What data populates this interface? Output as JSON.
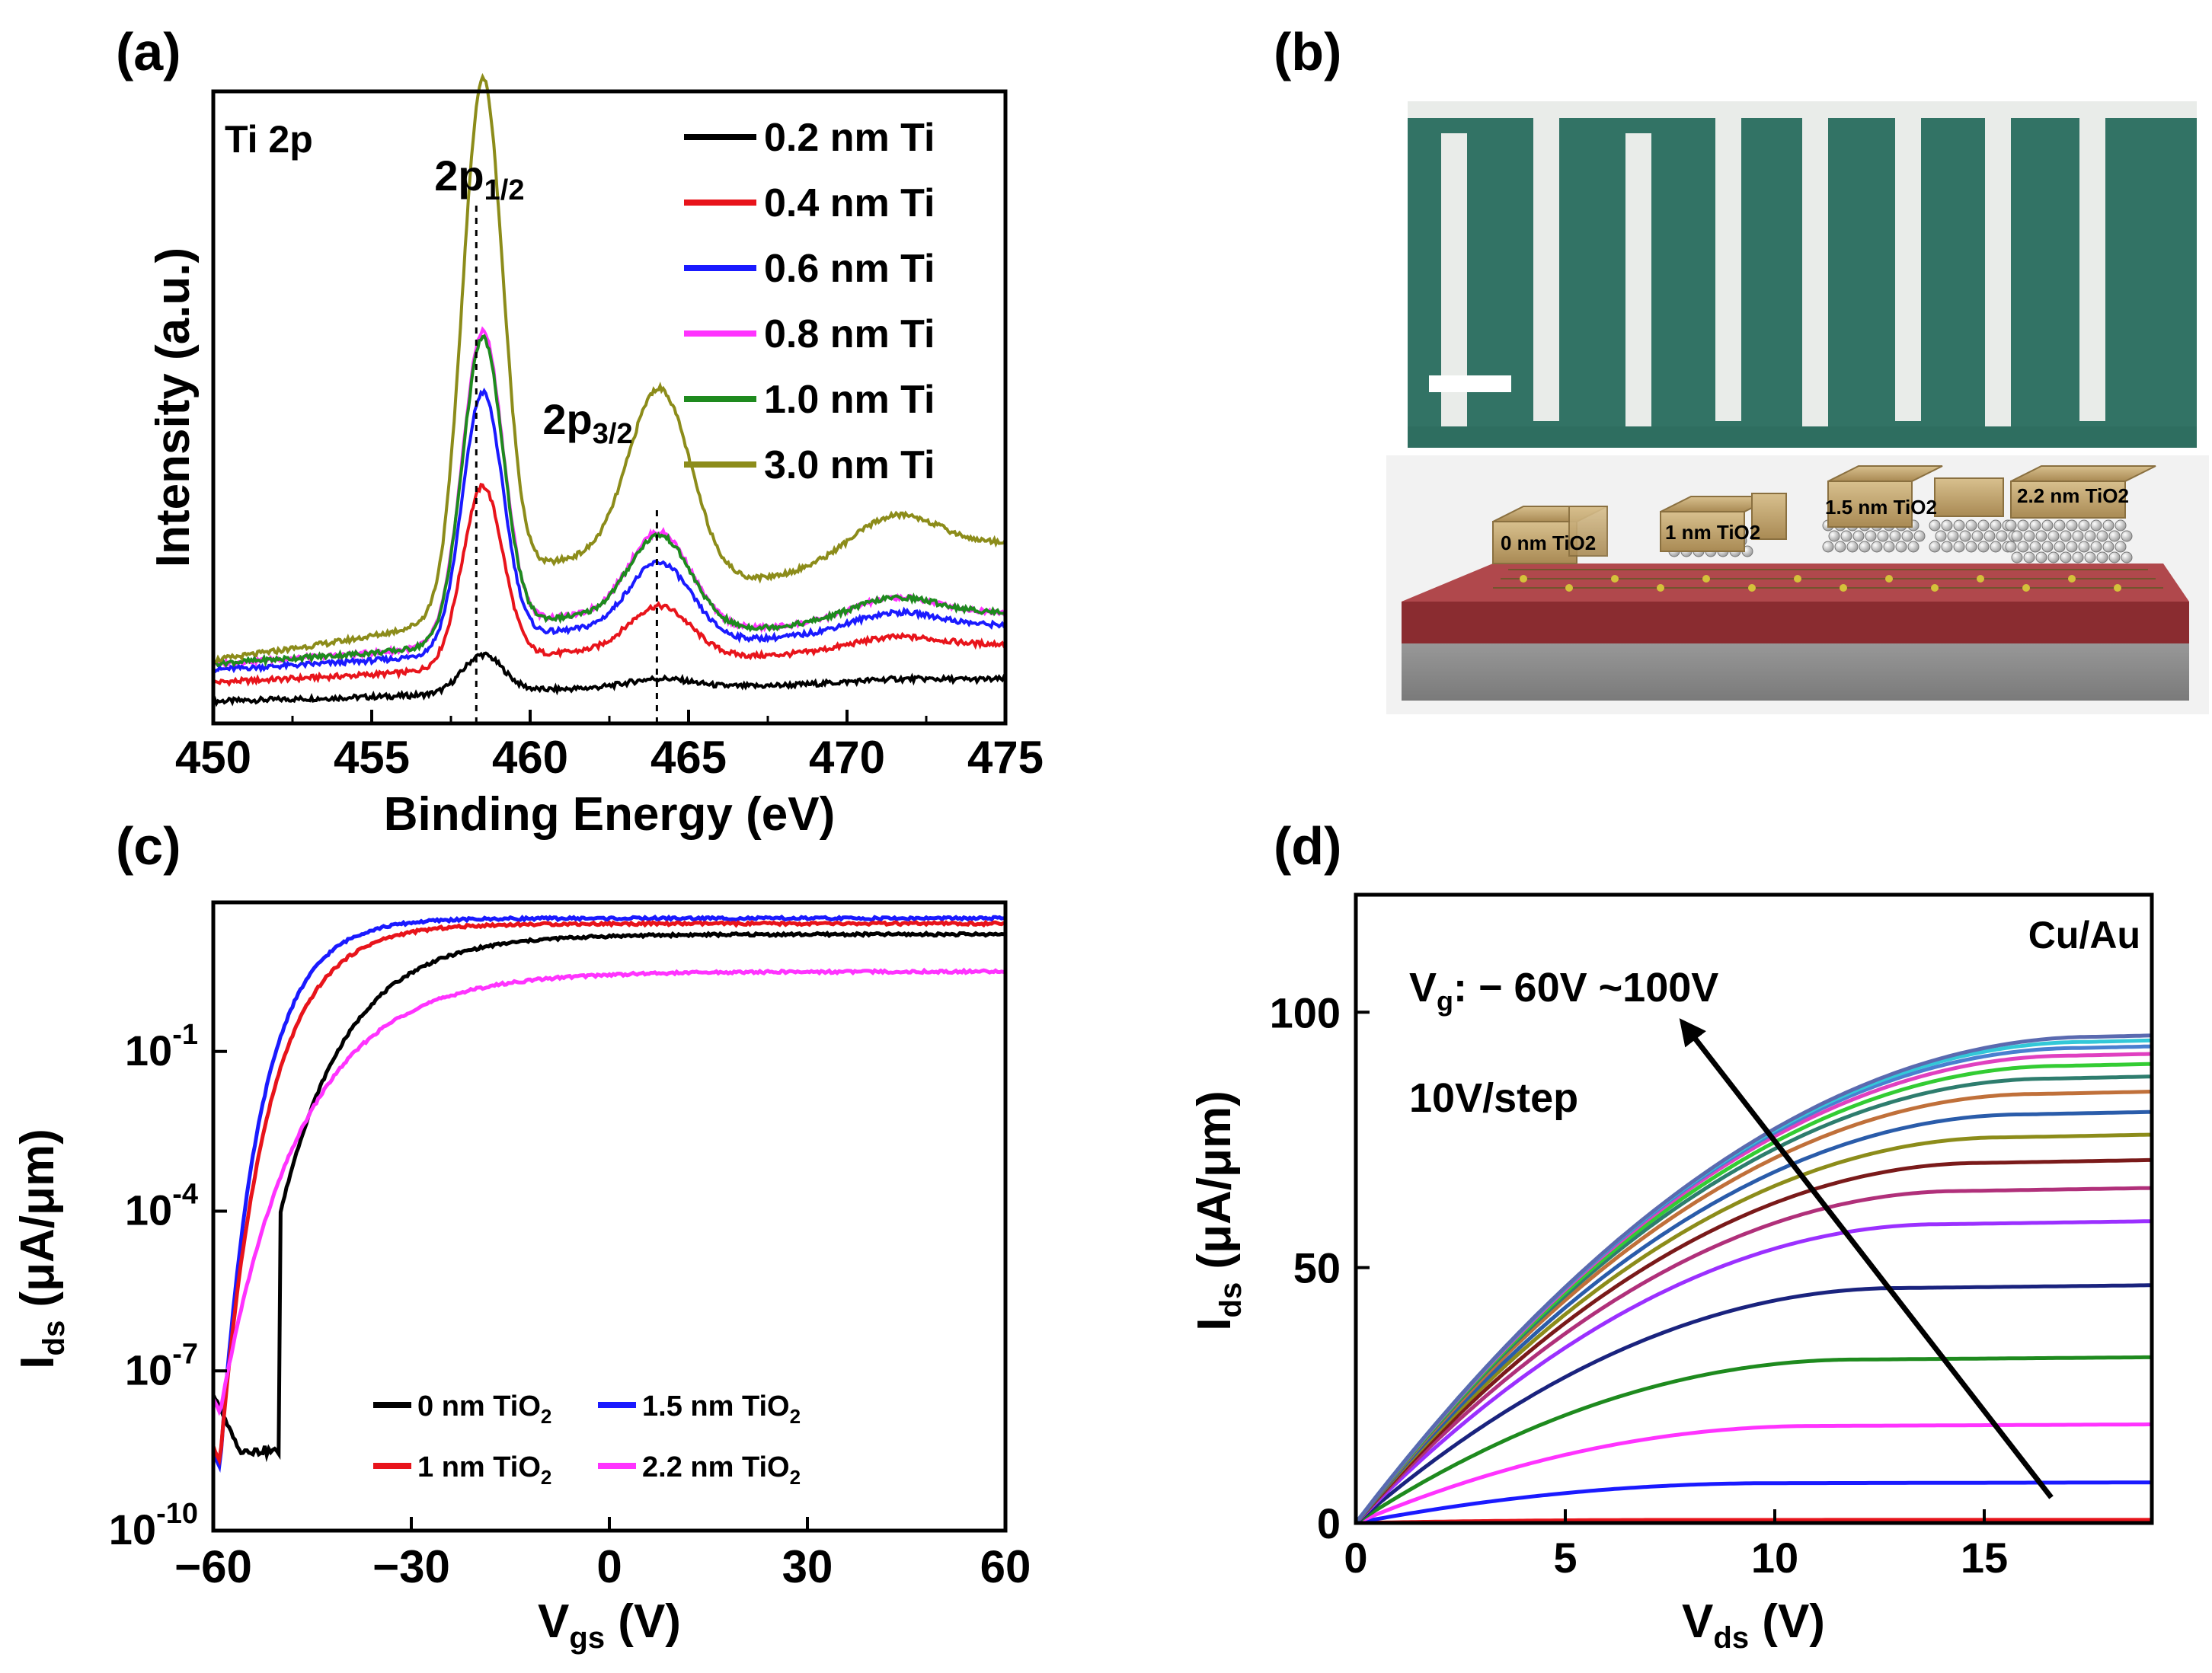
{
  "colors": {
    "black": "#000000",
    "red": "#e8141b",
    "blue": "#1a1aff",
    "magenta": "#ff33ff",
    "green": "#1e8a1e",
    "olive": "#8c8c1a",
    "sem_bg": "#2e6e60",
    "sem_bar": "#e9ece9",
    "substrate_red": "#8a2c30",
    "substrate_gray": "#8a8a8a",
    "contact_gold": "#c8ab74"
  },
  "panels": {
    "a": {
      "label": "(a)"
    },
    "b": {
      "label": "(b)"
    },
    "c": {
      "label": "(c)"
    },
    "d": {
      "label": "(d)"
    }
  },
  "schematic": {
    "labels": [
      "0 nm TiO2",
      "1 nm TiO2",
      "1.5 nm TiO2",
      "2.2 nm TiO2"
    ]
  },
  "chart_data": [
    {
      "id": "a",
      "type": "line",
      "title": "",
      "corner_label": "Ti 2p",
      "xlabel": "Binding Energy (eV)",
      "ylabel": "Intensity (a.u.)",
      "xlim": [
        450,
        475
      ],
      "ylim": [
        0,
        1
      ],
      "xticks": [
        450,
        455,
        460,
        465,
        470,
        475
      ],
      "peaks": [
        {
          "label_main": "2p",
          "label_sub": "1/2",
          "position_ev": 458.3
        },
        {
          "label_main": "2p",
          "label_sub": "3/2",
          "position_ev": 464.0
        }
      ],
      "legend_position": "top-right",
      "series": [
        {
          "name": "0.2 nm Ti",
          "color": "#000000",
          "baseline": 0.035,
          "baseline_end": 0.07,
          "p1": 0.06,
          "p2": 0.015,
          "p3": 0.005
        },
        {
          "name": "0.4 nm Ti",
          "color": "#e8141b",
          "baseline": 0.065,
          "baseline_end": 0.125,
          "p1": 0.28,
          "p2": 0.08,
          "p3": 0.02
        },
        {
          "name": "0.6 nm Ti",
          "color": "#1a1aff",
          "baseline": 0.085,
          "baseline_end": 0.155,
          "p1": 0.4,
          "p2": 0.12,
          "p3": 0.03
        },
        {
          "name": "0.8 nm Ti",
          "color": "#ff33ff",
          "baseline": 0.095,
          "baseline_end": 0.175,
          "p1": 0.48,
          "p2": 0.15,
          "p3": 0.035
        },
        {
          "name": "1.0 nm Ti",
          "color": "#1e8a1e",
          "baseline": 0.095,
          "baseline_end": 0.175,
          "p1": 0.47,
          "p2": 0.145,
          "p3": 0.035
        },
        {
          "name": "3.0 nm Ti",
          "color": "#8c8c1a",
          "baseline": 0.1,
          "baseline_end": 0.285,
          "p1": 0.82,
          "p2": 0.3,
          "p3": 0.07
        }
      ]
    },
    {
      "id": "c",
      "type": "line",
      "title": "",
      "xlabel_main": "V",
      "xlabel_sub": "gs",
      "xlabel_tail": " (V)",
      "ylabel_main": "I",
      "ylabel_sub": "ds",
      "ylabel_tail": " (μA/μm)",
      "xlim": [
        -60,
        60
      ],
      "ylim_log10": [
        -10,
        1.8
      ],
      "xticks": [
        -60,
        -30,
        0,
        30,
        60
      ],
      "xtick_labels": [
        "−60",
        "−30",
        "0",
        "30",
        "60"
      ],
      "yticks": [
        {
          "base": "10",
          "exp": "-10",
          "log": -10
        },
        {
          "base": "10",
          "exp": "-7",
          "log": -7
        },
        {
          "base": "10",
          "exp": "-4",
          "log": -4
        },
        {
          "base": "10",
          "exp": "-1",
          "log": -1
        }
      ],
      "legend_position": "bottom-right",
      "series": [
        {
          "name": "0 nm TiO",
          "name_sub": "2",
          "color": "#000000",
          "log_min": -8.5,
          "log_max": 1.2,
          "v_min": -56,
          "v_mid": -38,
          "width": 10
        },
        {
          "name": "1.5 nm TiO",
          "name_sub": "2",
          "color": "#1a1aff",
          "log_min": -8.8,
          "log_max": 1.5,
          "v_min": -59,
          "v_mid": -52,
          "width": 6
        },
        {
          "name": "1 nm TiO",
          "name_sub": "2",
          "color": "#e8141b",
          "log_min": -8.7,
          "log_max": 1.4,
          "v_min": -59,
          "v_mid": -48,
          "width": 7
        },
        {
          "name": "2.2 nm TiO",
          "name_sub": "2",
          "color": "#ff33ff",
          "log_min": -7.8,
          "log_max": 0.5,
          "v_min": -59,
          "v_mid": -50,
          "width": 12
        }
      ]
    },
    {
      "id": "d",
      "type": "line",
      "title": "",
      "corner_label": "Cu/Au",
      "xlabel_main": "V",
      "xlabel_sub": "ds",
      "xlabel_tail": " (V)",
      "ylabel_main": "I",
      "ylabel_sub": "ds",
      "ylabel_tail": " (μA/μm)",
      "xlim": [
        0,
        19
      ],
      "ylim": [
        0,
        123
      ],
      "xticks": [
        0,
        5,
        10,
        15
      ],
      "yticks": [
        0,
        50,
        100
      ],
      "annotation_line1_main": "V",
      "annotation_line1_sub": "g",
      "annotation_line1_tail": ": − 60V ~100V",
      "annotation_line2": "10V/step",
      "arrow": {
        "from": [
          16.6,
          5
        ],
        "to": [
          7.8,
          98
        ]
      },
      "series": [
        {
          "name": "Vg -60V",
          "color": "#e8141b",
          "isat": 0.6,
          "vsat": 8
        },
        {
          "name": "Vg -50V",
          "color": "#1a1aff",
          "isat": 7.8,
          "vsat": 10
        },
        {
          "name": "Vg -40V",
          "color": "#ff33ff",
          "isat": 19,
          "vsat": 11
        },
        {
          "name": "Vg -30V",
          "color": "#1e8a1e",
          "isat": 32,
          "vsat": 12
        },
        {
          "name": "Vg -20V",
          "color": "#1a237e",
          "isat": 46,
          "vsat": 13
        },
        {
          "name": "Vg -10V",
          "color": "#9b30ff",
          "isat": 58.5,
          "vsat": 14
        },
        {
          "name": "Vg 0V",
          "color": "#b0307a",
          "isat": 65,
          "vsat": 14.5
        },
        {
          "name": "Vg 10V",
          "color": "#7a1a1a",
          "isat": 70.5,
          "vsat": 15
        },
        {
          "name": "Vg 20V",
          "color": "#8c8c1a",
          "isat": 75.5,
          "vsat": 15.5
        },
        {
          "name": "Vg 30V",
          "color": "#2a5caa",
          "isat": 80,
          "vsat": 16
        },
        {
          "name": "Vg 40V",
          "color": "#c0703a",
          "isat": 84,
          "vsat": 16.3
        },
        {
          "name": "Vg 50V",
          "color": "#2e7d6e",
          "isat": 87,
          "vsat": 16.6
        },
        {
          "name": "Vg 60V",
          "color": "#33cc33",
          "isat": 89.5,
          "vsat": 16.9
        },
        {
          "name": "Vg 70V",
          "color": "#e040c0",
          "isat": 91.5,
          "vsat": 17.1
        },
        {
          "name": "Vg 80V",
          "color": "#4a7fd0",
          "isat": 93,
          "vsat": 17.3
        },
        {
          "name": "Vg 90V",
          "color": "#33c8d8",
          "isat": 94.2,
          "vsat": 17.5
        },
        {
          "name": "Vg 100V",
          "color": "#5a6ab0",
          "isat": 95.2,
          "vsat": 17.7
        }
      ]
    }
  ]
}
